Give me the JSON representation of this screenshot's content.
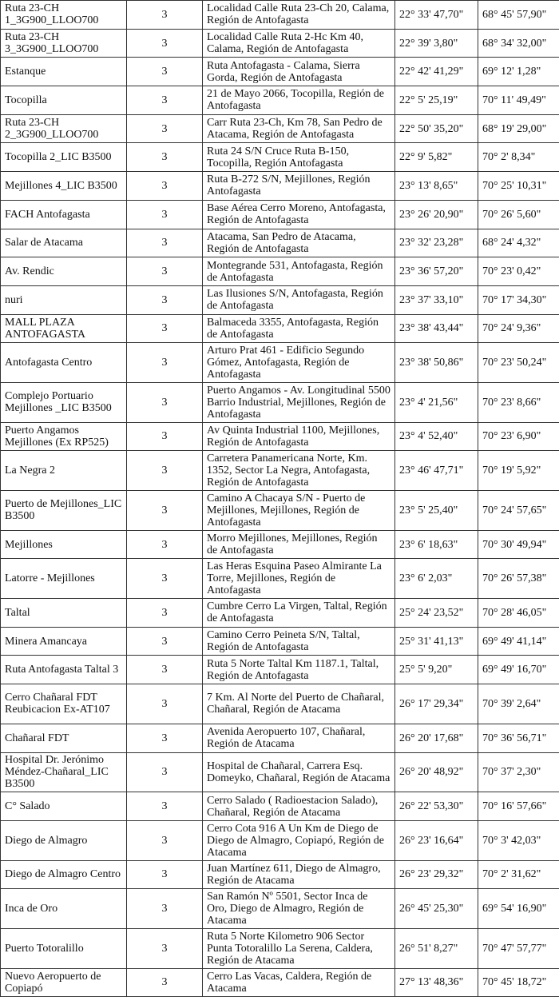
{
  "rows": [
    {
      "name": "Ruta 23-CH 1_3G900_LLOO700",
      "sectors": "3",
      "address": "Localidad Calle Ruta 23-Ch 20, Calama, Región de Antofagasta",
      "lat": "22° 33' 47,70\"",
      "lon": "68° 45' 57,90\"",
      "lines": 2
    },
    {
      "name": "Ruta 23-CH 3_3G900_LLOO700",
      "sectors": "3",
      "address": "Localidad Calle Ruta 2-Hc Km 40, Calama, Región de Antofagasta",
      "lat": "22° 39' 3,80\"",
      "lon": "68° 34' 32,00\"",
      "lines": 2
    },
    {
      "name": "Estanque",
      "sectors": "3",
      "address": "Ruta Antofagasta - Calama, Sierra Gorda, Región de Antofagasta",
      "lat": "22° 42' 41,29\"",
      "lon": "69° 12' 1,28\"",
      "lines": 2
    },
    {
      "name": "Tocopilla",
      "sectors": "3",
      "address": "21 de Mayo 2066, Tocopilla, Región de Antofagasta",
      "lat": "22° 5' 25,19\"",
      "lon": "70° 11' 49,49\"",
      "lines": 2
    },
    {
      "name": "Ruta 23-CH 2_3G900_LLOO700",
      "sectors": "3",
      "address": "Carr Ruta 23-Ch, Km 78, San Pedro de Atacama, Región de Antofagasta",
      "lat": "22° 50' 35,20\"",
      "lon": "68° 19' 29,00\"",
      "lines": 2
    },
    {
      "name": "Tocopilla 2_LIC B3500",
      "sectors": "3",
      "address": "Ruta 24 S/N Cruce Ruta B-150, Tocopilla, Región Antofagasta",
      "lat": "22° 9' 5,82\"",
      "lon": "70° 2' 8,34\"",
      "lines": 2
    },
    {
      "name": "Mejillones 4_LIC B3500",
      "sectors": "3",
      "address": "Ruta B-272 S/N,  Mejillones, Región Antofagasta",
      "lat": "23° 13' 8,65\"",
      "lon": "70° 25' 10,31\"",
      "lines": 2
    },
    {
      "name": "FACH Antofagasta",
      "sectors": "3",
      "address": "Base Aérea Cerro Moreno, Antofagasta, Región de Antofagasta",
      "lat": "23° 26' 20,90\"",
      "lon": "70° 26' 5,60\"",
      "lines": 2
    },
    {
      "name": "Salar de Atacama",
      "sectors": "3",
      "address": "Atacama, San Pedro de Atacama, Región de Antofagasta",
      "lat": "23° 32' 23,28\"",
      "lon": "68° 24' 4,32\"",
      "lines": 2
    },
    {
      "name": "Av. Rendic",
      "sectors": "3",
      "address": "Montegrande 531, Antofagasta, Región de Antofagasta",
      "lat": "23° 36' 57,20\"",
      "lon": "70° 23' 0,42\"",
      "lines": 2
    },
    {
      "name": "nuri",
      "sectors": "3",
      "address": "Las Ilusiones S/N, Antofagasta, Región de Antofagasta",
      "lat": "23° 37' 33,10\"",
      "lon": "70° 17' 34,30\"",
      "lines": 2
    },
    {
      "name": "MALL PLAZA ANTOFAGASTA",
      "sectors": "3",
      "address": "Balmaceda 3355, Antofagasta, Región de Antofagasta",
      "lat": "23° 38' 43,44\"",
      "lon": "70° 24' 9,36\"",
      "lines": 2
    },
    {
      "name": "Antofagasta Centro",
      "sectors": "3",
      "address": "Arturo Prat 461 - Edificio Segundo Gómez, Antofagasta, Región de Antofagasta",
      "lat": "23° 38' 50,86\"",
      "lon": "70° 23' 50,24\"",
      "lines": 3
    },
    {
      "name": "Complejo Portuario Mejillones _LIC B3500",
      "sectors": "3",
      "address": "Puerto Angamos - Av. Longitudinal 5500 Barrio Industrial, Mejillones, Región de Antofagasta",
      "lat": "23° 4' 21,56\"",
      "lon": "70° 23' 8,66\"",
      "lines": 3
    },
    {
      "name": "Puerto Angamos Mejillones (Ex RP525)",
      "sectors": "3",
      "address": "Av Quinta Industrial 1100, Mejillones, Región de Antofagasta",
      "lat": "23° 4' 52,40\"",
      "lon": "70° 23' 6,90\"",
      "lines": 2
    },
    {
      "name": "La Negra 2",
      "sectors": "3",
      "address": "Carretera Panamericana Norte, Km. 1352, Sector La Negra, Antofagasta, Región de Antofagasta",
      "lat": "23° 46' 47,71\"",
      "lon": "70° 19' 5,92\"",
      "lines": 3
    },
    {
      "name": "Puerto de Mejillones_LIC B3500",
      "sectors": "3",
      "address": "Camino A Chacaya S/N - Puerto de Mejillones, Mejillones, Región de Antofagasta",
      "lat": "23° 5' 25,40\"",
      "lon": "70° 24' 57,65\"",
      "lines": 3
    },
    {
      "name": "Mejillones",
      "sectors": "3",
      "address": "Morro Mejillones, Mejillones, Región de Antofagasta",
      "lat": "23° 6' 18,63\"",
      "lon": "70° 30' 49,94\"",
      "lines": 2
    },
    {
      "name": "Latorre - Mejillones",
      "sectors": "3",
      "address": "Las Heras Esquina Paseo Almirante La Torre, Mejillones, Región de Antofagasta",
      "lat": "23° 6' 2,03\"",
      "lon": "70° 26' 57,38\"",
      "lines": 3
    },
    {
      "name": "Taltal",
      "sectors": "3",
      "address": "Cumbre Cerro La Virgen, Taltal, Región de Antofagasta",
      "lat": "25° 24' 23,52\"",
      "lon": "70° 28' 46,05\"",
      "lines": 2
    },
    {
      "name": "Minera Amancaya",
      "sectors": "3",
      "address": "Camino Cerro Peineta S/N, Taltal, Región de Antofagasta",
      "lat": "25° 31' 41,13\"",
      "lon": "69° 49' 41,14\"",
      "lines": 2
    },
    {
      "name": "Ruta Antofagasta Taltal 3",
      "sectors": "3",
      "address": "Ruta 5 Norte Taltal Km 1187.1, Taltal, Región de Antofagasta",
      "lat": "25° 5' 9,20\"",
      "lon": "69° 49' 16,70\"",
      "lines": 2
    },
    {
      "name": "Cerro Chañaral FDT Reubicacion Ex-AT107",
      "sectors": "3",
      "address": "7 Km. Al Norte del Puerto de Chañaral, Chañaral, Región de Atacama",
      "lat": "26° 17' 29,34\"",
      "lon": "70° 39' 2,64\"",
      "lines": 3
    },
    {
      "name": "Chañaral FDT",
      "sectors": "3",
      "address": "Avenida Aeropuerto 107, Chañaral, Región de Atacama",
      "lat": "26° 20' 17,68\"",
      "lon": "70° 36' 56,71\"",
      "lines": 2
    },
    {
      "name": "Hospital Dr. Jerónimo Méndez-Chañaral_LIC B3500",
      "sectors": "3",
      "address": "Hospital de Chañaral, Carrera Esq. Domeyko, Chañaral, Región de Atacama",
      "lat": "26° 20' 48,92\"",
      "lon": "70° 37' 2,30\"",
      "lines": 3
    },
    {
      "name": "C° Salado",
      "sectors": "3",
      "address": "Cerro Salado ( Radioestacion Salado), Chañaral, Región de Atacama",
      "lat": "26° 22' 53,30\"",
      "lon": "70° 16' 57,66\"",
      "lines": 2
    },
    {
      "name": "Diego de Almagro",
      "sectors": "3",
      "address": "Cerro Cota 916 A Un Km de Diego de Diego de Almagro, Copiapó, Región de Atacama",
      "lat": "26° 23' 16,64\"",
      "lon": "70° 3' 42,03\"",
      "lines": 3
    },
    {
      "name": "Diego de Almagro Centro",
      "sectors": "3",
      "address": "Juan Martínez 611, Diego de Almagro, Región de Atacama",
      "lat": "26° 23' 29,32\"",
      "lon": "70° 2' 31,62\"",
      "lines": 2
    },
    {
      "name": "Inca de Oro",
      "sectors": "3",
      "address": "San Ramón Nº 5501, Sector Inca de Oro, Diego de Almagro, Región de Atacama",
      "lat": "26° 45' 25,30\"",
      "lon": "69° 54' 16,90\"",
      "lines": 3
    },
    {
      "name": "Puerto Totoralillo",
      "sectors": "3",
      "address": "Ruta 5 Norte Kilometro 906 Sector Punta Totoralillo La Serena, Caldera, Región de Atacama",
      "lat": "26° 51' 8,27\"",
      "lon": "70° 47' 57,77\"",
      "lines": 3
    },
    {
      "name": "Nuevo Aeropuerto de Copiapó",
      "sectors": "3",
      "address": "Cerro Las Vacas, Caldera, Región de Atacama",
      "lat": "27° 13' 48,36\"",
      "lon": "70° 45' 18,72\"",
      "lines": 2
    }
  ]
}
